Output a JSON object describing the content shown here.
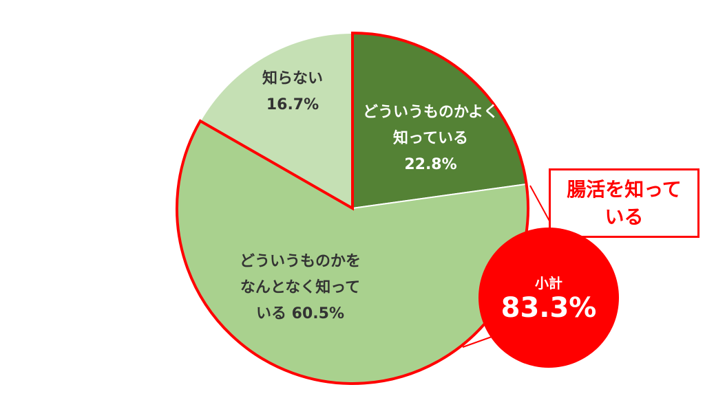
{
  "chart_data": {
    "type": "pie",
    "categories": [
      "どういうものかよく知っている",
      "どういうものかをなんとなく知っている",
      "知らない"
    ],
    "values": [
      22.8,
      60.5,
      16.7
    ],
    "value_labels": [
      "22.8%",
      "60.5%",
      "16.7%"
    ],
    "colors": [
      "#548235",
      "#a9d18e",
      "#c5e0b4"
    ],
    "label_colors": [
      "#ffffff",
      "#333333",
      "#333333"
    ],
    "highlight_color": "#ff0000",
    "annotations": {
      "callout": "腸活を知っている",
      "subtotal_title": "小計",
      "subtotal": "83.3%"
    }
  }
}
